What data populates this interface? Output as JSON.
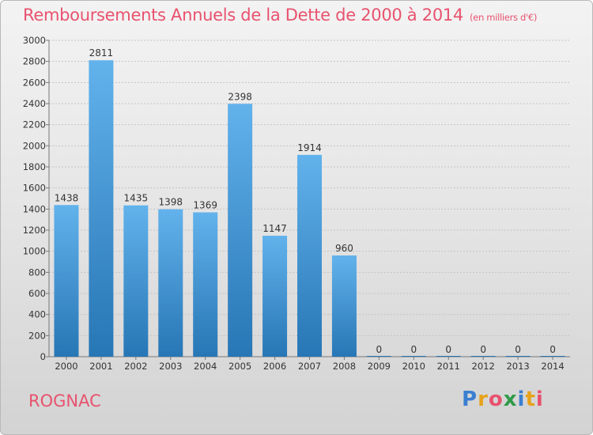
{
  "title": "Remboursements Annuels de la Dette de 2000 à 2014",
  "title_unit": "(en milliers d'€)",
  "city": "ROGNAC",
  "logo": {
    "letters": [
      {
        "ch": "P",
        "color": "#3b7fd1"
      },
      {
        "ch": "r",
        "color": "#e6a21a"
      },
      {
        "ch": "o",
        "color": "#e8526e"
      },
      {
        "ch": "x",
        "color": "#2e9a48"
      },
      {
        "ch": "i",
        "color": "#3b7fd1"
      },
      {
        "ch": "t",
        "color": "#e6a21a"
      },
      {
        "ch": "i",
        "color": "#e8526e"
      }
    ]
  },
  "colors": {
    "title": "#e8526e",
    "bar_top": "#62b2ec",
    "bar_bottom": "#2776b5"
  },
  "chart_data": {
    "type": "bar",
    "categories": [
      "2000",
      "2001",
      "2002",
      "2003",
      "2004",
      "2005",
      "2006",
      "2007",
      "2008",
      "2009",
      "2010",
      "2011",
      "2012",
      "2013",
      "2014"
    ],
    "values": [
      1438,
      2811,
      1435,
      1398,
      1369,
      2398,
      1147,
      1914,
      960,
      0,
      0,
      0,
      0,
      0,
      0
    ],
    "ylim": [
      0,
      3000
    ],
    "yticks": [
      0,
      200,
      400,
      600,
      800,
      1000,
      1200,
      1400,
      1600,
      1800,
      2000,
      2200,
      2400,
      2600,
      2800,
      3000
    ],
    "grid": true
  }
}
